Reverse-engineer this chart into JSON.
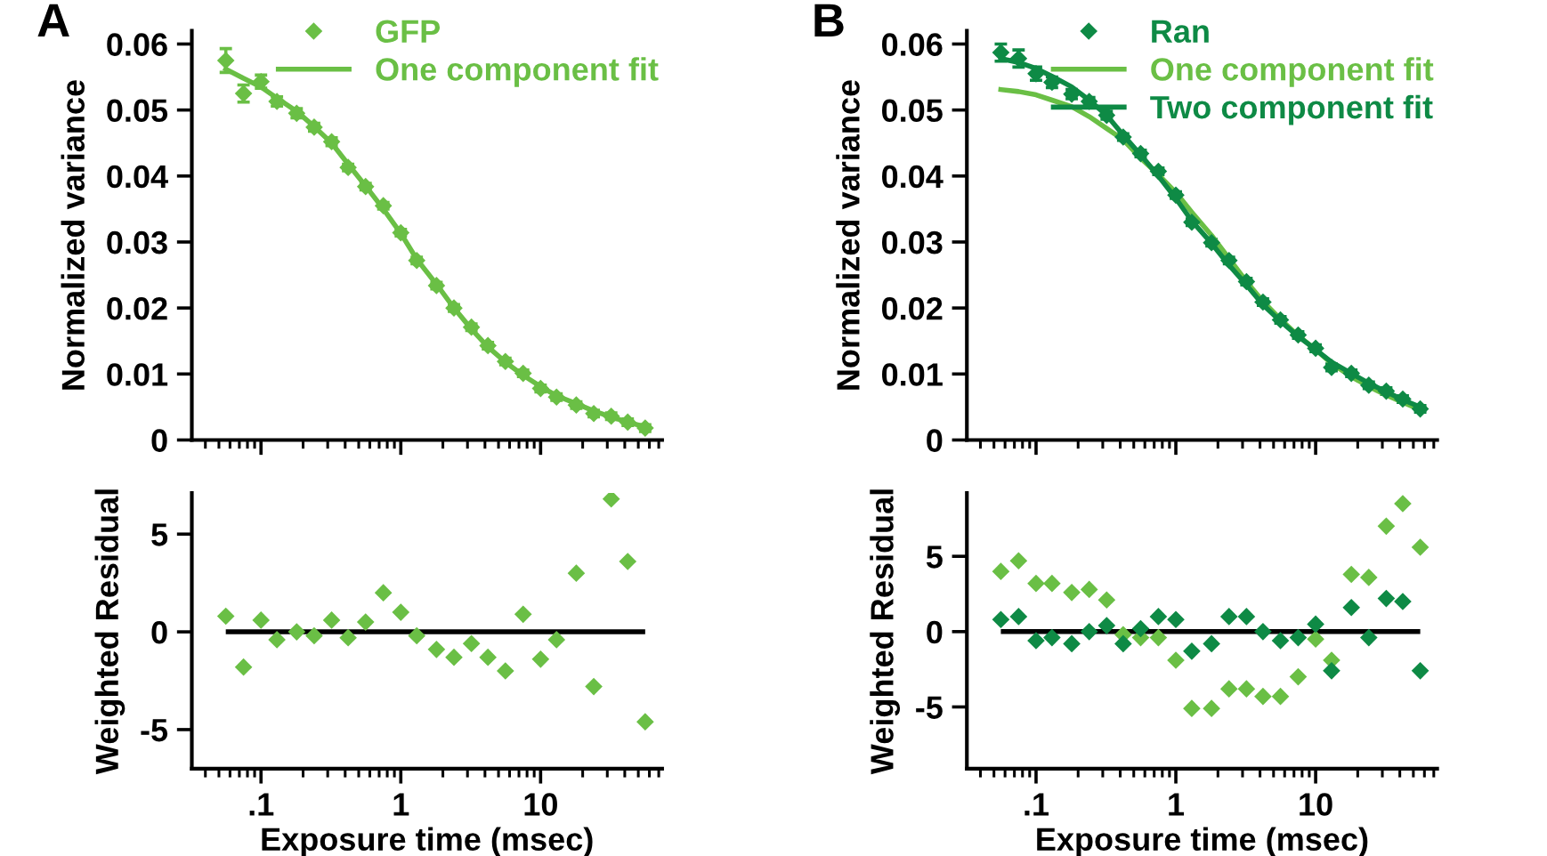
{
  "chart_data": [
    {
      "type": "scatter",
      "title": "A",
      "ylabel": "Normalized variance",
      "xlim": [
        0.032,
        74
      ],
      "ylim": [
        0,
        0.062
      ],
      "log": "x",
      "xticks": [
        {
          "value": 0.1,
          "label": null
        },
        {
          "value": 1,
          "label": null
        },
        {
          "value": 10,
          "label": null
        }
      ],
      "yticks": [
        0,
        0.01,
        0.02,
        0.03,
        0.04,
        0.05,
        0.06
      ],
      "tick_labels": "y",
      "legend": "top right",
      "grid": false,
      "x": [
        0.056,
        0.075,
        0.1,
        0.13,
        0.18,
        0.24,
        0.32,
        0.42,
        0.56,
        0.75,
        1,
        1.3,
        1.8,
        2.4,
        3.2,
        4.2,
        5.6,
        7.5,
        10,
        13,
        18,
        24,
        32,
        42,
        56
      ],
      "series": [
        {
          "name": "GFP",
          "marker": "diamond",
          "color": "#6abf45",
          "values": [
            0.0575,
            0.0525,
            0.0543,
            0.0513,
            0.0495,
            0.0474,
            0.0452,
            0.0413,
            0.0384,
            0.0355,
            0.0314,
            0.0272,
            0.0234,
            0.02,
            0.0171,
            0.0143,
            0.0119,
            0.0101,
            0.0078,
            0.0065,
            0.0053,
            0.004,
            0.0036,
            0.0027,
            0.0018
          ],
          "errors": [
            0.0018,
            0.0013,
            0.001,
            0.0007,
            0.0007,
            0.0006,
            0.0006,
            0.0005,
            0.0005,
            0.0005,
            0.0005,
            0.0005,
            0.0005,
            0.0005,
            0.0005,
            0.0005,
            0.0005,
            0.0005,
            0.0005,
            0.0005,
            0.0005,
            0.0005,
            0.0005,
            0.0005,
            0.0005
          ]
        },
        {
          "name": "One component fit",
          "type": "line",
          "color": "#6abf45",
          "values": [
            0.0562,
            0.0548,
            0.0535,
            0.0518,
            0.0498,
            0.0475,
            0.045,
            0.0418,
            0.0385,
            0.035,
            0.0313,
            0.0274,
            0.0236,
            0.02,
            0.0168,
            0.0141,
            0.0118,
            0.0098,
            0.0081,
            0.0067,
            0.0055,
            0.0044,
            0.0035,
            0.0027,
            0.002
          ]
        }
      ]
    },
    {
      "type": "scatter",
      "ylabel": "Weighted Residual",
      "xlabel": "Exposure time (msec)",
      "xlim": [
        0.032,
        74
      ],
      "ylim": [
        -7,
        7.1
      ],
      "log": "x",
      "xticks": [
        {
          "value": 0.1,
          "label": ".1"
        },
        1,
        10
      ],
      "yticks": [
        -5,
        0,
        5
      ],
      "grid": false,
      "ref_lines": [
        {
          "axis": "y",
          "value": 0,
          "color": "#000000"
        }
      ],
      "x": [
        0.056,
        0.075,
        0.1,
        0.13,
        0.18,
        0.24,
        0.32,
        0.42,
        0.56,
        0.75,
        1,
        1.3,
        1.8,
        2.4,
        3.2,
        4.2,
        5.6,
        7.5,
        10,
        13,
        18,
        24,
        32,
        42,
        56
      ],
      "series": [
        {
          "marker": "diamond",
          "color": "#6abf45",
          "values": [
            0.8,
            -1.8,
            0.6,
            -0.4,
            0,
            -0.2,
            0.6,
            -0.3,
            0.5,
            2.0,
            1.0,
            -0.2,
            -0.9,
            -1.3,
            -0.6,
            -1.3,
            -2.0,
            0.9,
            -1.4,
            -0.4,
            3.0,
            -2.8,
            6.8,
            3.6,
            -4.6
          ]
        }
      ]
    },
    {
      "type": "scatter",
      "title": "B",
      "ylabel": "Normalized variance",
      "xlim": [
        0.032,
        74
      ],
      "ylim": [
        0,
        0.062
      ],
      "log": "x",
      "xticks": [
        {
          "value": 0.1,
          "label": null
        },
        {
          "value": 1,
          "label": null
        },
        {
          "value": 10,
          "label": null
        }
      ],
      "yticks": [
        0,
        0.01,
        0.02,
        0.03,
        0.04,
        0.05,
        0.06
      ],
      "tick_labels": "y",
      "legend": "top right",
      "grid": false,
      "x": [
        0.056,
        0.075,
        0.1,
        0.13,
        0.18,
        0.24,
        0.32,
        0.42,
        0.56,
        0.75,
        1,
        1.3,
        1.8,
        2.4,
        3.2,
        4.2,
        5.6,
        7.5,
        10,
        13,
        18,
        24,
        32,
        42,
        56
      ],
      "series": [
        {
          "name": "Ran",
          "marker": "diamond",
          "color": "#0e8a45",
          "values": [
            0.0587,
            0.0578,
            0.0555,
            0.0542,
            0.0524,
            0.0513,
            0.0492,
            0.0459,
            0.0434,
            0.0407,
            0.0371,
            0.033,
            0.0299,
            0.0272,
            0.024,
            0.0209,
            0.0182,
            0.0159,
            0.0139,
            0.011,
            0.0101,
            0.0083,
            0.0074,
            0.0062,
            0.0047
          ],
          "errors": [
            0.0013,
            0.0013,
            0.001,
            0.0008,
            0.0007,
            0.0006,
            0.0006,
            0.0005,
            0.0005,
            0.0005,
            0.0005,
            0.0005,
            0.0005,
            0.0005,
            0.0005,
            0.0005,
            0.0005,
            0.0005,
            0.0005,
            0.0005,
            0.0005,
            0.0005,
            0.0005,
            0.0005,
            0.0005
          ]
        },
        {
          "name": "One component fit",
          "type": "line",
          "color": "#6abf45",
          "values": [
            0.0531,
            0.0528,
            0.0523,
            0.0515,
            0.0505,
            0.049,
            0.0472,
            0.0455,
            0.0427,
            0.0402,
            0.0375,
            0.0345,
            0.031,
            0.0275,
            0.024,
            0.021,
            0.0183,
            0.0158,
            0.0137,
            0.0116,
            0.0096,
            0.0081,
            0.0068,
            0.0057,
            0.0046
          ]
        },
        {
          "name": "Two component fit",
          "type": "line",
          "color": "#0e8a45",
          "values": [
            0.0578,
            0.0572,
            0.0563,
            0.0551,
            0.0535,
            0.0515,
            0.0492,
            0.0462,
            0.0432,
            0.04,
            0.0366,
            0.0332,
            0.0298,
            0.0265,
            0.0235,
            0.0205,
            0.018,
            0.0157,
            0.0137,
            0.0118,
            0.0101,
            0.0086,
            0.0073,
            0.0061,
            0.005
          ]
        }
      ]
    },
    {
      "type": "scatter",
      "ylabel": "Weighted Residual",
      "xlabel": "Exposure time (msec)",
      "xlim": [
        0.032,
        74
      ],
      "ylim": [
        -9.1,
        9.2
      ],
      "log": "x",
      "xticks": [
        {
          "value": 0.1,
          "label": ".1"
        },
        1,
        10
      ],
      "yticks": [
        -5,
        0,
        5
      ],
      "grid": false,
      "ref_lines": [
        {
          "axis": "y",
          "value": 0,
          "color": "#000000"
        }
      ],
      "x": [
        0.056,
        0.075,
        0.1,
        0.13,
        0.18,
        0.24,
        0.32,
        0.42,
        0.56,
        0.75,
        1,
        1.3,
        1.8,
        2.4,
        3.2,
        4.2,
        5.6,
        7.5,
        10,
        13,
        18,
        24,
        32,
        42,
        56
      ],
      "series": [
        {
          "marker": "diamond",
          "color": "#6abf45",
          "values": [
            4.0,
            4.7,
            3.2,
            3.2,
            2.6,
            2.8,
            2.1,
            -0.2,
            -0.4,
            -0.4,
            -1.9,
            -5.1,
            -5.1,
            -3.8,
            -3.8,
            -4.3,
            -4.3,
            -3.0,
            -0.5,
            -1.9,
            3.8,
            3.6,
            7.0,
            8.5,
            5.6
          ]
        },
        {
          "marker": "diamond",
          "color": "#0e8a45",
          "values": [
            0.8,
            1.0,
            -0.6,
            -0.4,
            -0.8,
            0,
            0.4,
            -0.8,
            0.2,
            1.0,
            0.8,
            -1.3,
            -0.8,
            1.0,
            1.0,
            0,
            -0.6,
            -0.4,
            0.5,
            -2.6,
            1.6,
            -0.4,
            2.2,
            2.0,
            -2.6
          ]
        }
      ]
    }
  ]
}
